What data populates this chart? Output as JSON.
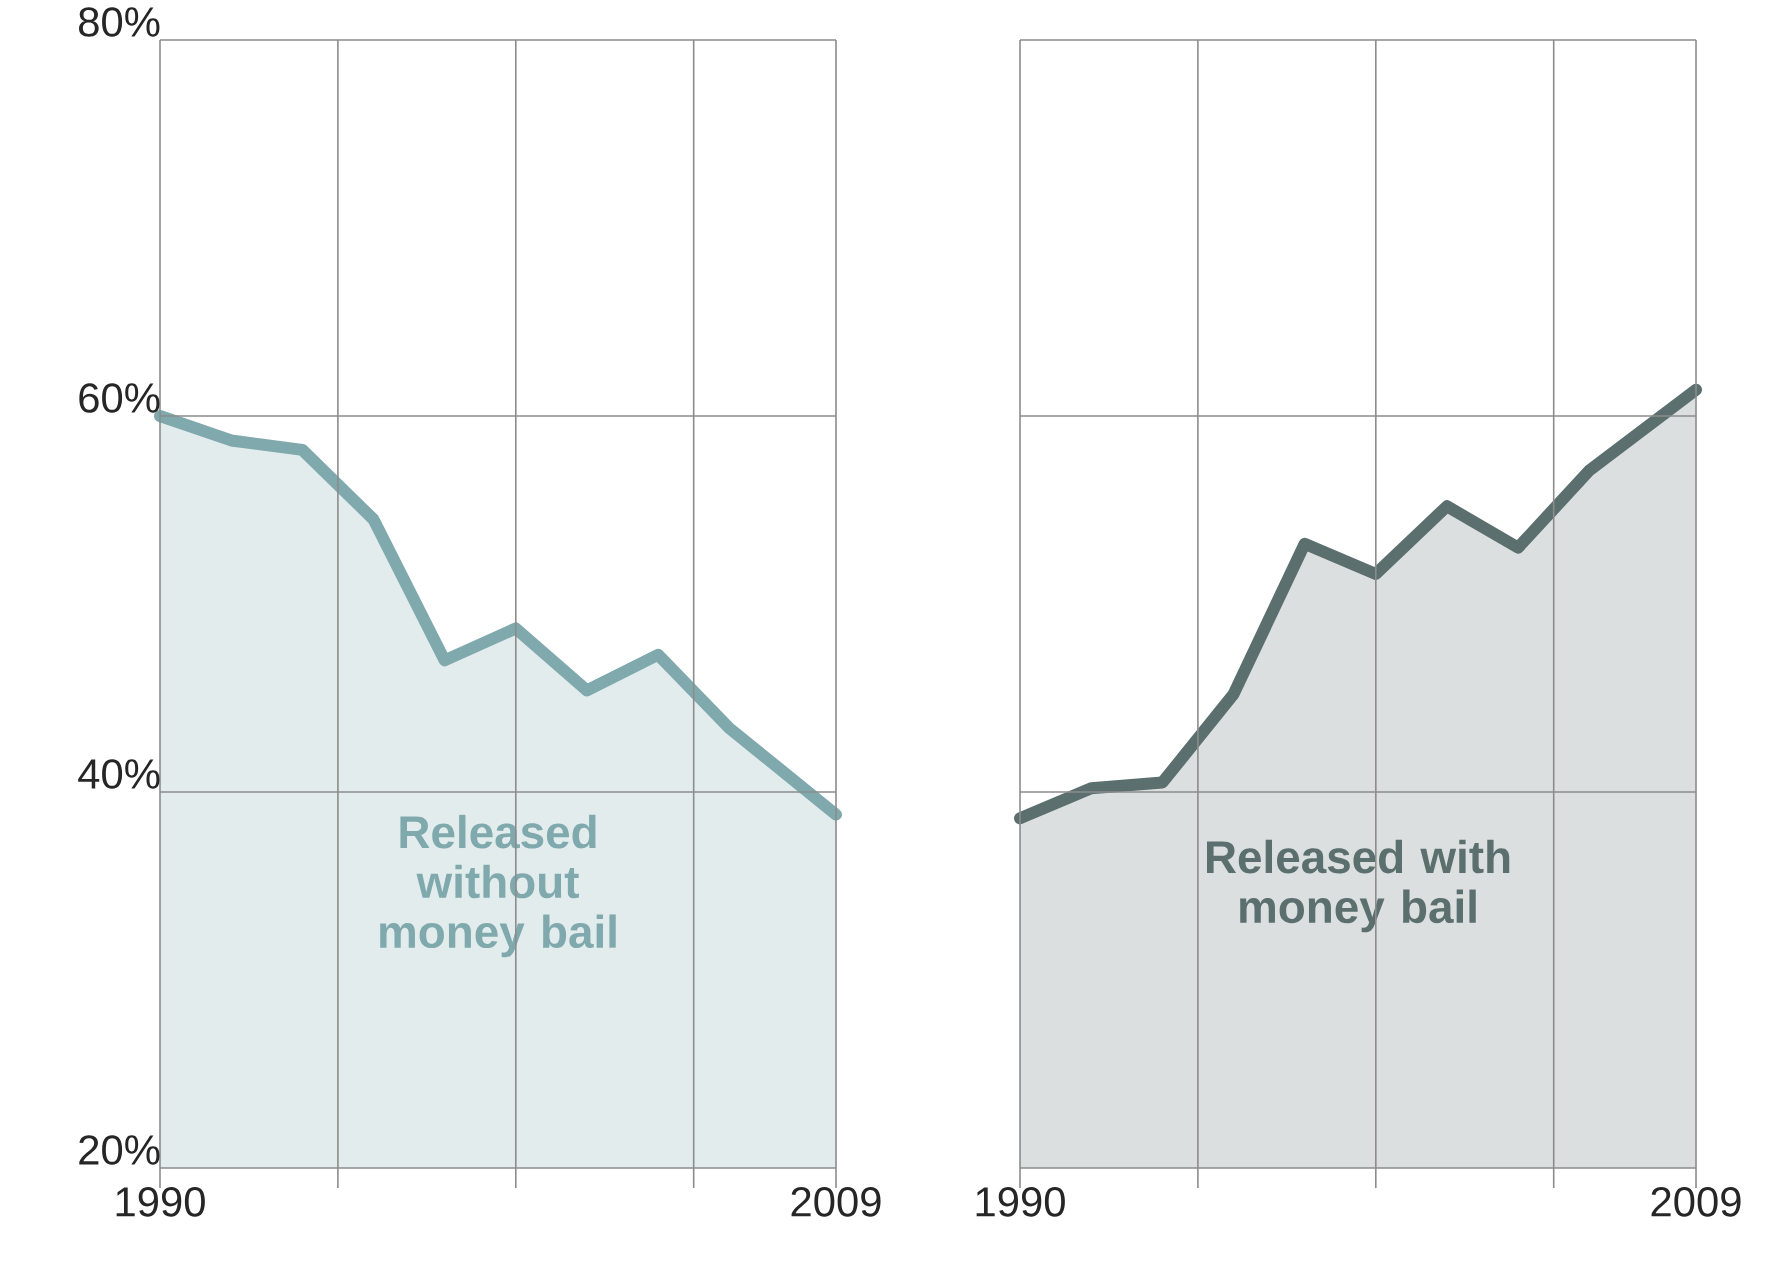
{
  "chart_data": [
    {
      "type": "area",
      "x": [
        1990,
        1992,
        1994,
        1996,
        1998,
        2000,
        2002,
        2004,
        2006,
        2009
      ],
      "series": [
        {
          "name": "Released without money bail",
          "color": "#7fa9ad",
          "values": [
            60.0,
            58.7,
            58.2,
            54.5,
            47.0,
            48.7,
            45.4,
            47.3,
            43.4,
            38.8
          ]
        }
      ],
      "xlim": [
        1990,
        2009
      ],
      "ylim": [
        20,
        80
      ],
      "xticks": [
        {
          "value": 1990,
          "label": "1990"
        },
        {
          "value": 1995,
          "label": null
        },
        {
          "value": 2000,
          "label": null
        },
        {
          "value": 2005,
          "label": null
        },
        {
          "value": 2009,
          "label": "2009"
        }
      ],
      "yticks": [
        {
          "value": 20,
          "label": "20%"
        },
        {
          "value": 40,
          "label": "40%"
        },
        {
          "value": 60,
          "label": "60%"
        },
        {
          "value": 80,
          "label": "80%"
        }
      ],
      "grid": true
    },
    {
      "type": "area",
      "x": [
        1990,
        1992,
        1994,
        1996,
        1998,
        2000,
        2002,
        2004,
        2006,
        2009
      ],
      "series": [
        {
          "name": "Released with money bail",
          "color": "#5b6f6e",
          "values": [
            38.6,
            40.2,
            40.5,
            45.2,
            53.2,
            51.6,
            55.2,
            53.0,
            57.1,
            61.4
          ]
        }
      ],
      "xlim": [
        1990,
        2009
      ],
      "ylim": [
        20,
        80
      ],
      "xticks": [
        {
          "value": 1990,
          "label": "1990"
        },
        {
          "value": 1995,
          "label": null
        },
        {
          "value": 2000,
          "label": null
        },
        {
          "value": 2005,
          "label": null
        },
        {
          "value": 2009,
          "label": "2009"
        }
      ],
      "yticks": [
        20,
        40,
        60,
        80
      ],
      "tick_labels": "x",
      "grid": true
    }
  ]
}
